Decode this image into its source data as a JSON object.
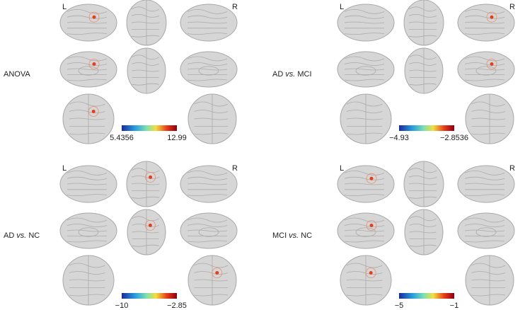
{
  "panels": [
    {
      "label": [
        "ANOVA"
      ],
      "left": "L",
      "right": "R",
      "colorbar": {
        "min": "5.4356",
        "max": "12.99"
      }
    },
    {
      "label": [
        "AD",
        "vs.",
        "MCI"
      ],
      "left": "L",
      "right": "R",
      "colorbar": {
        "min": "−4.93",
        "max": "−2.8536"
      }
    },
    {
      "label": [
        "AD",
        "vs.",
        "NC"
      ],
      "left": "L",
      "right": "R",
      "colorbar": {
        "min": "−10",
        "max": "−2.85"
      }
    },
    {
      "label": [
        "MCI",
        "vs.",
        "NC"
      ],
      "left": "L",
      "right": "R",
      "colorbar": {
        "min": "−5",
        "max": "−1"
      }
    }
  ]
}
